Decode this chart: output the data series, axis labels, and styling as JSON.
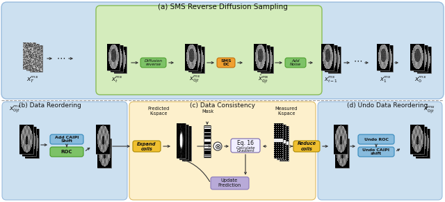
{
  "title_a": "(a) SMS Reverse Diffusion Sampling",
  "title_b": "(b) Data Reordering",
  "title_c": "(c) Data Consistency",
  "title_d": "(d) Undo Data Reordering",
  "bg_blue": "#cce0f0",
  "bg_green": "#d4ecbc",
  "bg_yellow": "#fdf0cc",
  "box_green_dark": "#7dc267",
  "box_orange": "#f0a030",
  "box_yellow": "#f0c030",
  "box_purple": "#b8aad8",
  "box_blue_light": "#88bbdd",
  "label_xT": "$x_T^{ms}$",
  "label_xt": "$x_t^{ms}$",
  "label_x0t": "$x_{0|t}^{ms}$",
  "label_x0t_hat": "$\\hat{x}_{0|t}^{ms}$",
  "label_xt1": "$x_{t-1}^{ms}$",
  "label_x1": "$x_1^{ms}$",
  "label_x0": "$x_0^{ms}$",
  "label_x0t_b": "$x_{0|t}^{ms}$",
  "label_x0t_d": "$\\hat{x}_{0|t}^{ms}$",
  "figsize": [
    6.4,
    2.9
  ],
  "dpi": 100
}
